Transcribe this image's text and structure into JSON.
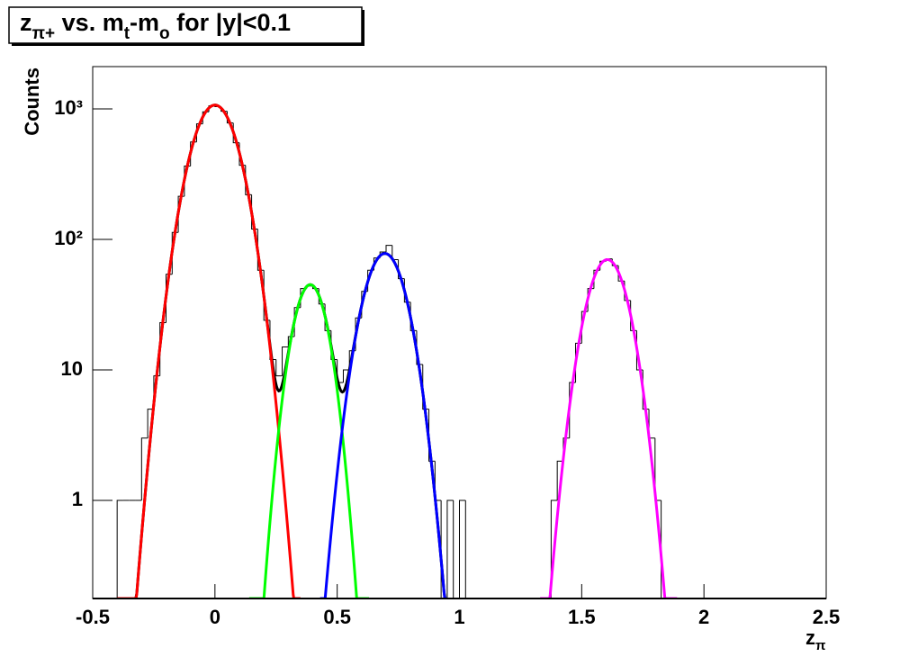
{
  "chart_data": {
    "type": "histogram",
    "title": [
      {
        "text": "z"
      },
      {
        "text": "π+",
        "sub": true
      },
      {
        "text": " vs. m"
      },
      {
        "text": "t",
        "sub": true
      },
      {
        "text": "-m"
      },
      {
        "text": "o",
        "sub": true
      },
      {
        "text": " for |y|<0.1"
      }
    ],
    "x_label": [
      {
        "text": "z"
      },
      {
        "text": "π",
        "sub": true
      }
    ],
    "y_label": "Counts",
    "xlim": [
      -0.5,
      2.5
    ],
    "xticks": [
      -0.5,
      0,
      0.5,
      1,
      1.5,
      2,
      2.5
    ],
    "ylim": [
      0.177,
      2110
    ],
    "yticks": [
      1,
      10,
      {
        "value": 100,
        "label": "10²"
      },
      {
        "value": 1000,
        "label": "10³"
      }
    ],
    "log_y": true,
    "grid": false,
    "color": "#000000",
    "bins": [
      -0.4,
      -0.375,
      -0.35,
      -0.325,
      -0.3,
      -0.275,
      -0.25,
      -0.225,
      -0.2,
      -0.175,
      -0.15,
      -0.125,
      -0.1,
      -0.075,
      -0.05,
      -0.025,
      0,
      0.025,
      0.05,
      0.075,
      0.1,
      0.125,
      0.15,
      0.175,
      0.2,
      0.225,
      0.25,
      0.275,
      0.3,
      0.325,
      0.35,
      0.375,
      0.4,
      0.425,
      0.45,
      0.475,
      0.5,
      0.525,
      0.55,
      0.575,
      0.6,
      0.625,
      0.65,
      0.675,
      0.7,
      0.725,
      0.75,
      0.775,
      0.8,
      0.825,
      0.85,
      0.875,
      0.9,
      0.925,
      0.95,
      0.975,
      1,
      1.025,
      1.05,
      1.075,
      1.1,
      1.125,
      1.15,
      1.175,
      1.2,
      1.225,
      1.25,
      1.275,
      1.3,
      1.325,
      1.35,
      1.375,
      1.4,
      1.425,
      1.45,
      1.475,
      1.5,
      1.525,
      1.55,
      1.575,
      1.6,
      1.625,
      1.65,
      1.675,
      1.7,
      1.725,
      1.75,
      1.775,
      1.8,
      1.825,
      1.85,
      1.875,
      1.9
    ],
    "values": [
      1,
      1,
      1,
      1,
      3,
      5,
      9,
      23,
      54,
      113,
      214,
      365,
      558,
      768,
      949,
      1056,
      1040,
      960,
      780,
      550,
      370,
      220,
      120,
      58,
      24,
      12,
      9,
      15,
      18,
      30,
      42,
      44,
      42,
      32,
      20,
      12,
      8,
      10,
      14,
      25,
      40,
      58,
      72,
      80,
      90,
      70,
      50,
      33,
      20,
      11,
      5,
      2,
      1,
      0,
      1,
      0,
      1,
      0,
      0,
      0,
      0,
      0,
      0,
      0,
      0,
      0,
      0,
      0,
      0,
      0,
      0,
      1,
      2,
      3,
      8,
      16,
      28,
      42,
      58,
      68,
      71,
      63,
      48,
      34,
      20,
      10,
      5,
      3,
      1,
      0,
      0,
      0
    ],
    "fits": [
      {
        "color": "#ff0000",
        "amplitude": 1070,
        "mean": 0,
        "sigma": 0.077,
        "xrange": [
          -0.4,
          0.35
        ]
      },
      {
        "color": "#00ff00",
        "amplitude": 45,
        "mean": 0.39,
        "sigma": 0.057,
        "xrange": [
          0.14,
          0.63
        ]
      },
      {
        "color": "#0000ff",
        "amplitude": 78,
        "mean": 0.695,
        "sigma": 0.07,
        "xrange": [
          0.43,
          0.95
        ]
      },
      {
        "color": "#ff00ff",
        "amplitude": 70,
        "mean": 1.605,
        "sigma": 0.068,
        "xrange": [
          1.33,
          1.89
        ]
      }
    ],
    "sum_fit": {
      "color": "#000000",
      "components": [
        0,
        1,
        2
      ],
      "xrange": [
        -0.35,
        0.95
      ]
    }
  }
}
